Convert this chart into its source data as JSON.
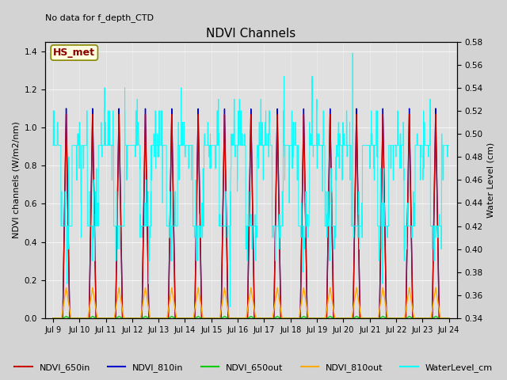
{
  "title": "NDVI Channels",
  "ylabel_left": "NDVI channels (W/m2/nm)",
  "ylabel_right": "Water Level (cm)",
  "annotation_text": "No data for f_depth_CTD",
  "box_label": "HS_met",
  "ylim_left": [
    0.0,
    1.45
  ],
  "ylim_right": [
    0.34,
    0.58
  ],
  "fig_bg": "#d3d3d3",
  "plot_bg": "#e0e0e0",
  "colors": {
    "NDVI_650in": "#cc0000",
    "NDVI_810in": "#0000cc",
    "NDVI_650out": "#00cc00",
    "NDVI_810out": "#ffaa00",
    "WaterLevel_cm": "#00ffff"
  },
  "x_tick_labels": [
    "Jul 9",
    "Jul 10",
    "Jul 11",
    "Jul 12",
    "Jul 13",
    "Jul 14",
    "Jul 15",
    "Jul 16",
    "Jul 17",
    "Jul 18",
    "Jul 19",
    "Jul 20",
    "Jul 21",
    "Jul 22",
    "Jul 23",
    "Jul 24"
  ],
  "figsize": [
    6.4,
    4.8
  ],
  "dpi": 100
}
